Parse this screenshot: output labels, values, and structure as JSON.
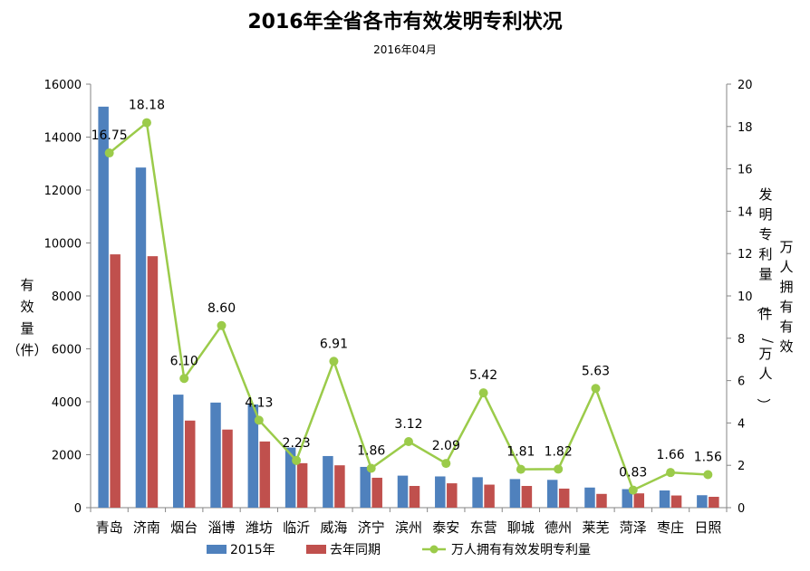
{
  "chart_data": {
    "type": "bar",
    "title": "2016年全省各市有效发明专利状况",
    "subtitle": "2016年04月",
    "categories": [
      "青岛",
      "济南",
      "烟台",
      "淄博",
      "潍坊",
      "临沂",
      "威海",
      "济宁",
      "滨州",
      "泰安",
      "东营",
      "聊城",
      "德州",
      "莱芜",
      "菏泽",
      "枣庄",
      "日照"
    ],
    "series": [
      {
        "name": "2015年",
        "kind": "bar",
        "axis": "left",
        "color": "#4F81BD",
        "values": [
          15150,
          12850,
          4270,
          3970,
          3900,
          2270,
          1950,
          1540,
          1210,
          1180,
          1150,
          1080,
          1050,
          760,
          700,
          650,
          470
        ]
      },
      {
        "name": "去年同期",
        "kind": "bar",
        "axis": "left",
        "color": "#C0504D",
        "values": [
          9570,
          9500,
          3290,
          2950,
          2500,
          1680,
          1600,
          1130,
          820,
          920,
          870,
          820,
          720,
          520,
          540,
          460,
          410
        ]
      },
      {
        "name": "万人拥有有效发明专利量",
        "kind": "line",
        "axis": "right",
        "color": "#9BCB4A",
        "values": [
          16.75,
          18.18,
          6.1,
          8.6,
          4.13,
          2.23,
          6.91,
          1.86,
          3.12,
          2.09,
          5.42,
          1.81,
          1.82,
          5.63,
          0.83,
          1.66,
          1.56
        ],
        "labels": [
          "16.75",
          "18.18",
          "6.10",
          "8.60",
          "4.13",
          "2.23",
          "6.91",
          "1.86",
          "3.12",
          "2.09",
          "5.42",
          "1.81",
          "1.82",
          "5.63",
          "0.83",
          "1.66",
          "1.56"
        ]
      }
    ],
    "ylabel_left": "有效量（件）",
    "ylabel_right": "万人拥有有效发明专利量（件/万人）",
    "ylim_left": [
      0,
      16000
    ],
    "yticks_left": [
      0,
      2000,
      4000,
      6000,
      8000,
      10000,
      12000,
      14000,
      16000
    ],
    "ylim_right": [
      0,
      20
    ],
    "yticks_right": [
      0,
      2,
      4,
      6,
      8,
      10,
      12,
      14,
      16,
      18,
      20
    ],
    "grid": false,
    "legend_position": "bottom"
  }
}
